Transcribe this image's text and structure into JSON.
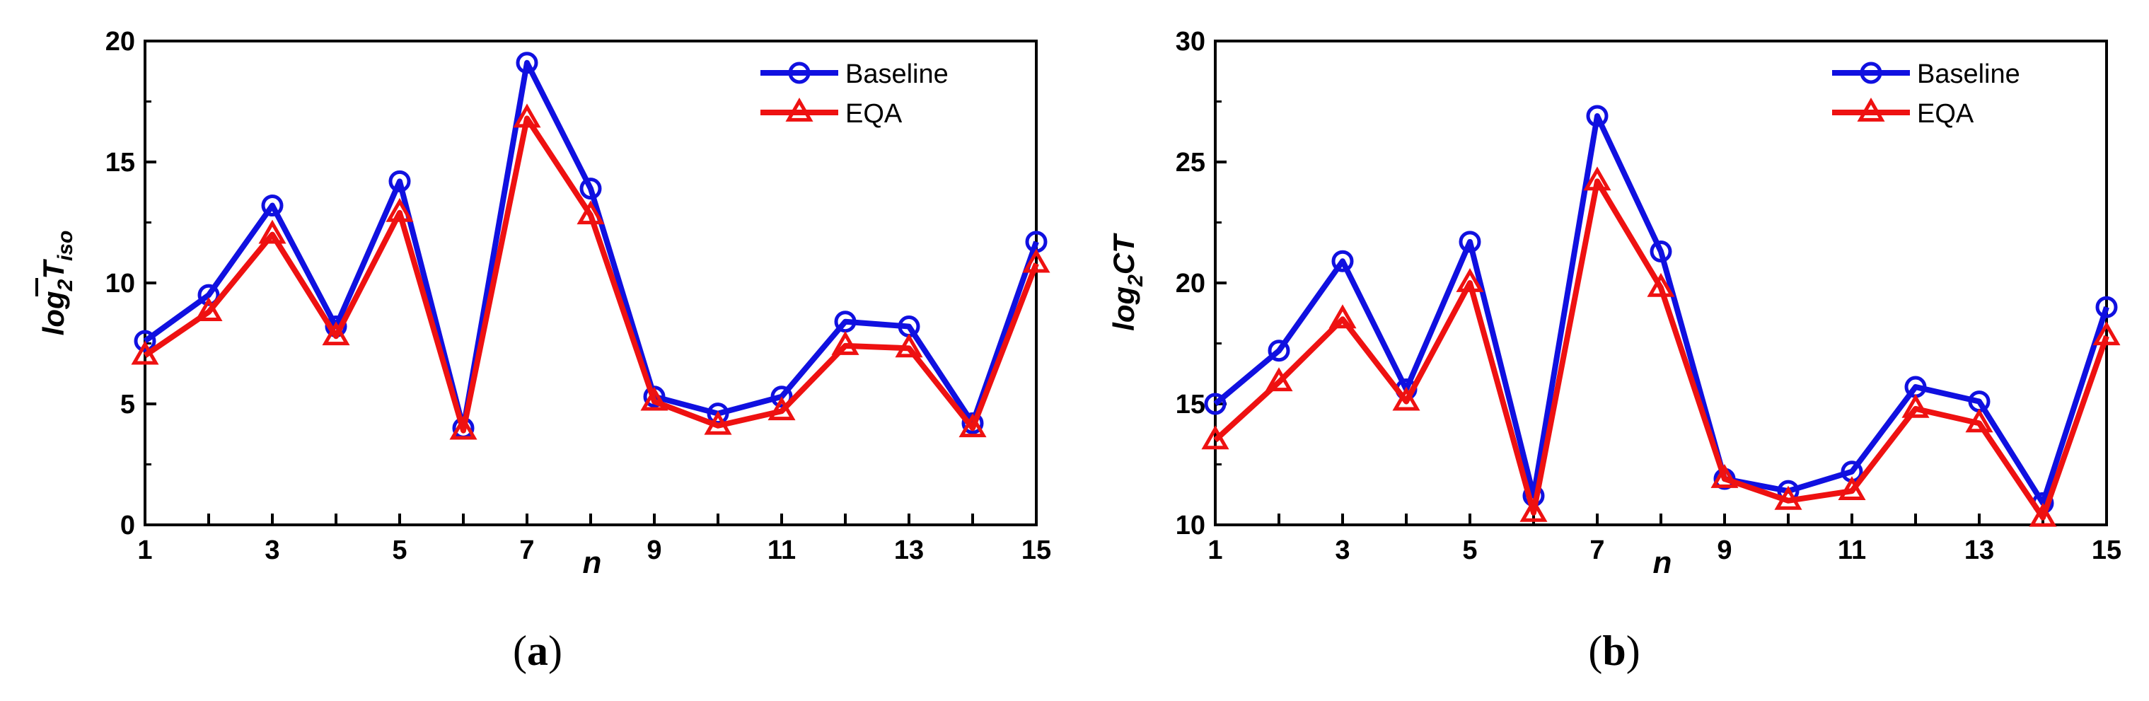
{
  "colors": {
    "baseline": "#1010e0",
    "eqa": "#ee1111",
    "axis": "#000000"
  },
  "chart_data": [
    {
      "type": "line",
      "caption_open": "(",
      "caption_letter": "a",
      "caption_close": ")",
      "xlabel": "n",
      "ylabel_main": "log",
      "ylabel_sub": "2",
      "ylabel_var": "T",
      "ylabel_var_sub": "iso",
      "ylabel_overbar": true,
      "x": [
        1,
        2,
        3,
        4,
        5,
        6,
        7,
        8,
        9,
        10,
        11,
        12,
        13,
        14,
        15
      ],
      "xticklabels": [
        "1",
        "3",
        "5",
        "7",
        "9",
        "11",
        "13",
        "15"
      ],
      "xtick_values": [
        1,
        3,
        5,
        7,
        9,
        11,
        13,
        15
      ],
      "xlim": [
        1,
        15
      ],
      "ylim": [
        0,
        20
      ],
      "yticks": [
        0,
        5,
        10,
        15,
        20
      ],
      "yticklabels": [
        "0",
        "5",
        "10",
        "15",
        "20"
      ],
      "legend": "top-right",
      "series": [
        {
          "name": "Baseline",
          "marker": "circle",
          "values": [
            7.6,
            9.5,
            13.2,
            8.2,
            14.2,
            4.0,
            19.1,
            13.9,
            5.3,
            4.6,
            5.3,
            8.4,
            8.2,
            4.2,
            11.7
          ]
        },
        {
          "name": "EQA",
          "marker": "triangle",
          "values": [
            7.0,
            8.8,
            12.0,
            7.8,
            12.9,
            3.9,
            16.8,
            12.8,
            5.1,
            4.1,
            4.7,
            7.4,
            7.3,
            4.0,
            10.8
          ]
        }
      ]
    },
    {
      "type": "line",
      "caption_open": "(",
      "caption_letter": "b",
      "caption_close": ")",
      "xlabel": "n",
      "ylabel_main": "log",
      "ylabel_sub": "2",
      "ylabel_var": "CT",
      "ylabel_var_sub": "",
      "ylabel_overbar": false,
      "x": [
        1,
        2,
        3,
        4,
        5,
        6,
        7,
        8,
        9,
        10,
        11,
        12,
        13,
        14,
        15
      ],
      "xticklabels": [
        "1",
        "3",
        "5",
        "7",
        "9",
        "11",
        "13",
        "15"
      ],
      "xtick_values": [
        1,
        3,
        5,
        7,
        9,
        11,
        13,
        15
      ],
      "xlim": [
        1,
        15
      ],
      "ylim": [
        10,
        30
      ],
      "yticks": [
        10,
        15,
        20,
        25,
        30
      ],
      "yticklabels": [
        "10",
        "15",
        "20",
        "25",
        "30"
      ],
      "legend": "top-right",
      "series": [
        {
          "name": "Baseline",
          "marker": "circle",
          "values": [
            15.0,
            17.2,
            20.9,
            15.6,
            21.7,
            11.2,
            26.9,
            21.3,
            11.9,
            11.4,
            12.2,
            15.7,
            15.1,
            10.9,
            19.0
          ]
        },
        {
          "name": "EQA",
          "marker": "triangle",
          "values": [
            13.5,
            15.9,
            18.5,
            15.1,
            20.0,
            10.5,
            24.2,
            19.8,
            11.9,
            11.0,
            11.4,
            14.8,
            14.2,
            10.3,
            17.8
          ]
        }
      ]
    }
  ]
}
